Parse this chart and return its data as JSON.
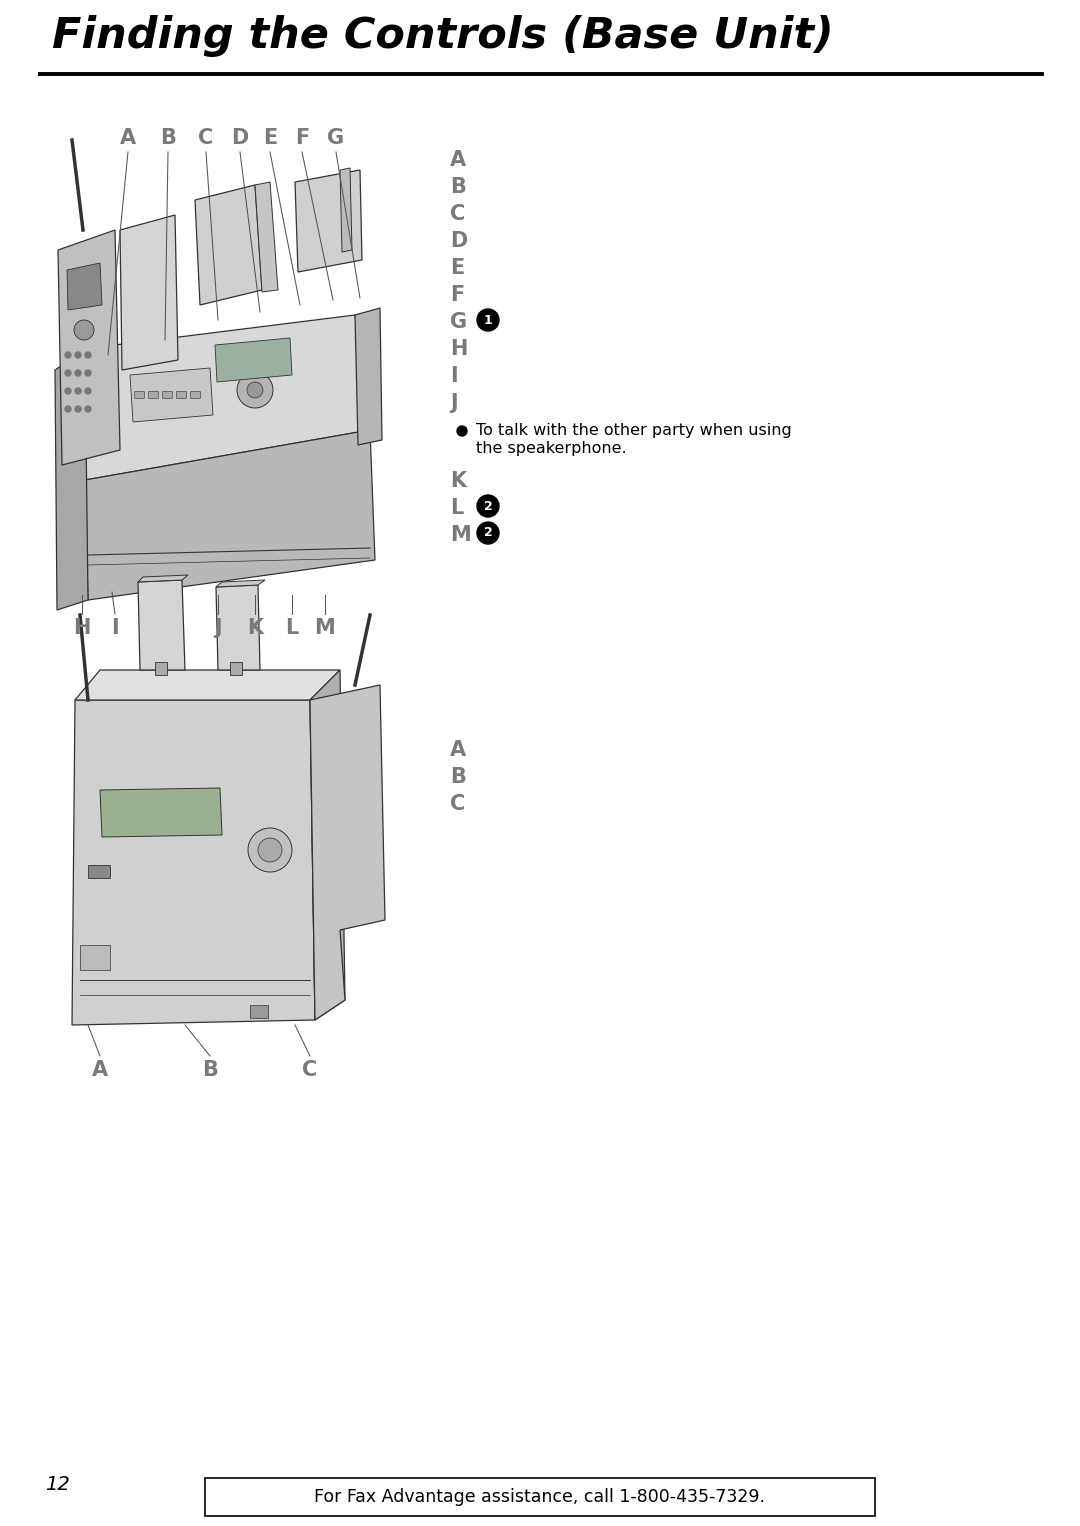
{
  "title": "Finding the Controls (Base Unit)",
  "page_number": "12",
  "footer_text": "For Fax Advantage assistance, call 1-800-435-7329.",
  "right_col_labels_1": [
    "A",
    "B",
    "C",
    "D",
    "E",
    "F",
    "G",
    "H",
    "I",
    "J"
  ],
  "right_col_labels_2": [
    "K",
    "L",
    "M"
  ],
  "bullet_line1": "To talk with the other party when using",
  "bullet_line2": "the speakerphone.",
  "right_col_labels_rear": [
    "A",
    "B",
    "C"
  ],
  "label_color": "#7a7a7a",
  "title_color": "#000000",
  "outline_color": "#333333",
  "device_fill": "#cccccc",
  "device_fill_dark": "#aaaaaa",
  "device_fill_light": "#e0e0e0",
  "bg_color": "#ffffff"
}
